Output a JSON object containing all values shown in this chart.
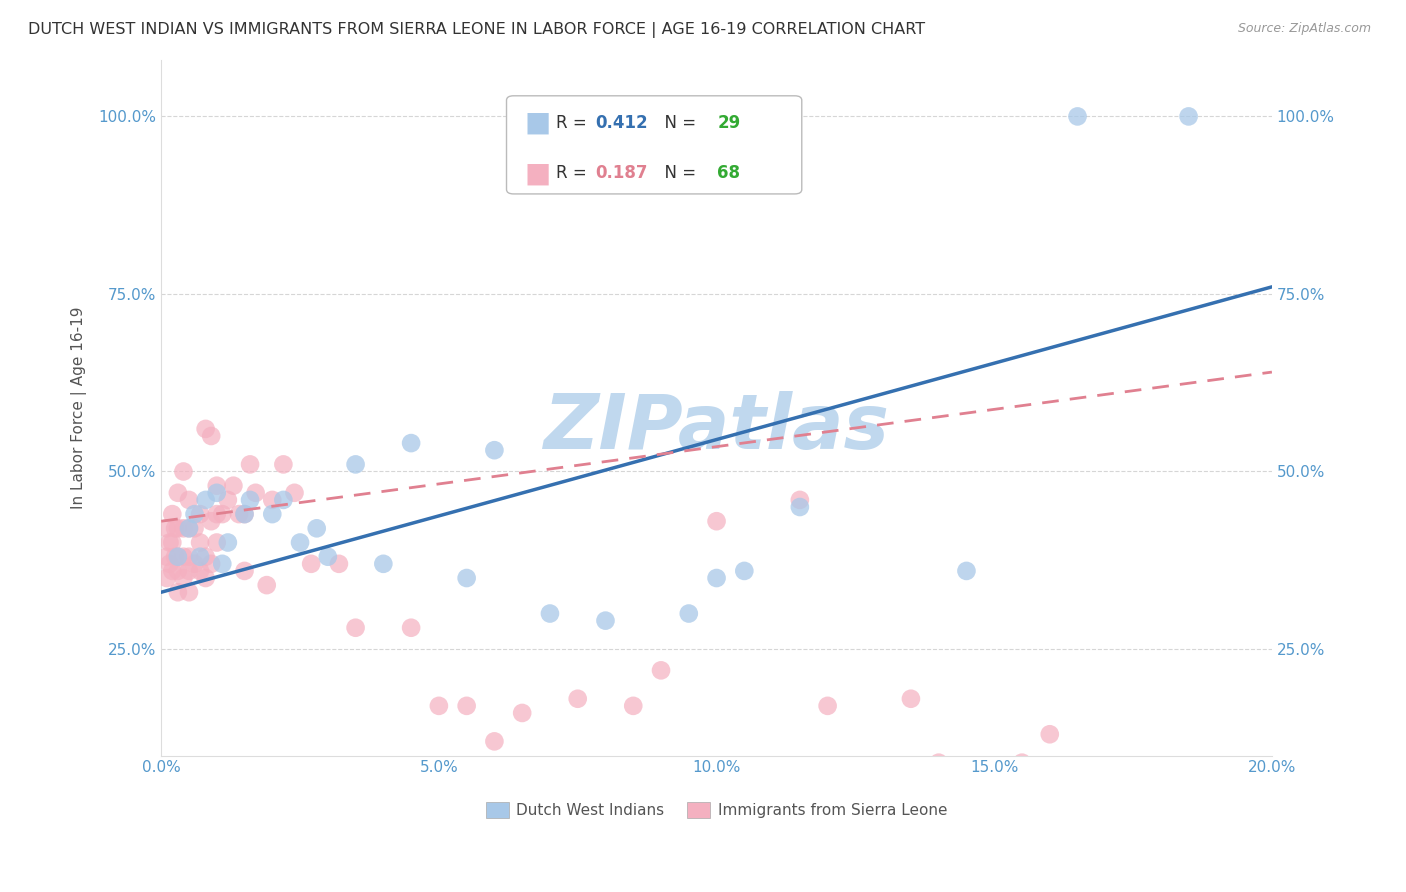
{
  "title": "DUTCH WEST INDIAN VS IMMIGRANTS FROM SIERRA LEONE IN LABOR FORCE | AGE 16-19 CORRELATION CHART",
  "source": "Source: ZipAtlas.com",
  "ylabel": "In Labor Force | Age 16-19",
  "xmin": 0.0,
  "xmax": 20.0,
  "ymin": 10.0,
  "ymax": 108.0,
  "yticks": [
    25.0,
    50.0,
    75.0,
    100.0
  ],
  "xticks": [
    0.0,
    5.0,
    10.0,
    15.0,
    20.0
  ],
  "blue_R": 0.412,
  "blue_N": 29,
  "pink_R": 0.187,
  "pink_N": 68,
  "blue_color": "#A8C8E8",
  "pink_color": "#F4B0C0",
  "blue_line_color": "#3570B0",
  "pink_line_color": "#E08090",
  "title_color": "#333333",
  "axis_color": "#5599CC",
  "grid_color": "#CCCCCC",
  "watermark": "ZIPatlas",
  "watermark_color": "#C0D8EE",
  "blue_scatter_x": [
    0.3,
    0.5,
    0.6,
    0.7,
    0.8,
    1.0,
    1.1,
    1.2,
    1.5,
    1.6,
    2.0,
    2.2,
    2.5,
    2.8,
    3.0,
    3.5,
    4.0,
    4.5,
    5.5,
    6.0,
    7.0,
    8.0,
    9.5,
    10.0,
    10.5,
    11.5,
    14.5,
    16.5,
    18.5
  ],
  "blue_scatter_y": [
    38,
    42,
    44,
    38,
    46,
    47,
    37,
    40,
    44,
    46,
    44,
    46,
    40,
    42,
    38,
    51,
    37,
    54,
    35,
    53,
    30,
    29,
    30,
    35,
    36,
    45,
    36,
    100,
    100
  ],
  "pink_scatter_x": [
    0.1,
    0.1,
    0.1,
    0.15,
    0.15,
    0.2,
    0.2,
    0.2,
    0.25,
    0.25,
    0.3,
    0.3,
    0.3,
    0.3,
    0.3,
    0.4,
    0.4,
    0.4,
    0.4,
    0.5,
    0.5,
    0.5,
    0.5,
    0.5,
    0.6,
    0.6,
    0.7,
    0.7,
    0.7,
    0.8,
    0.8,
    0.8,
    0.9,
    0.9,
    0.9,
    1.0,
    1.0,
    1.0,
    1.1,
    1.2,
    1.3,
    1.4,
    1.5,
    1.5,
    1.6,
    1.7,
    1.9,
    2.0,
    2.2,
    2.4,
    2.7,
    3.2,
    3.5,
    4.5,
    5.0,
    5.5,
    6.0,
    6.5,
    7.5,
    8.5,
    9.0,
    10.0,
    11.5,
    12.0,
    13.5,
    14.0,
    15.5,
    16.0
  ],
  "pink_scatter_y": [
    35,
    38,
    42,
    37,
    40,
    36,
    40,
    44,
    38,
    42,
    33,
    36,
    38,
    42,
    47,
    35,
    38,
    42,
    50,
    33,
    36,
    38,
    42,
    46,
    37,
    42,
    36,
    40,
    44,
    35,
    38,
    56,
    37,
    43,
    55,
    40,
    44,
    48,
    44,
    46,
    48,
    44,
    36,
    44,
    51,
    47,
    34,
    46,
    51,
    47,
    37,
    37,
    28,
    28,
    17,
    17,
    12,
    16,
    18,
    17,
    22,
    43,
    46,
    17,
    18,
    9,
    9,
    13
  ],
  "blue_line_x0": 0.0,
  "blue_line_y0": 33.0,
  "blue_line_x1": 20.0,
  "blue_line_y1": 76.0,
  "pink_line_x0": 0.0,
  "pink_line_y0": 43.0,
  "pink_line_x1": 20.0,
  "pink_line_y1": 64.0,
  "background_color": "#FFFFFF"
}
